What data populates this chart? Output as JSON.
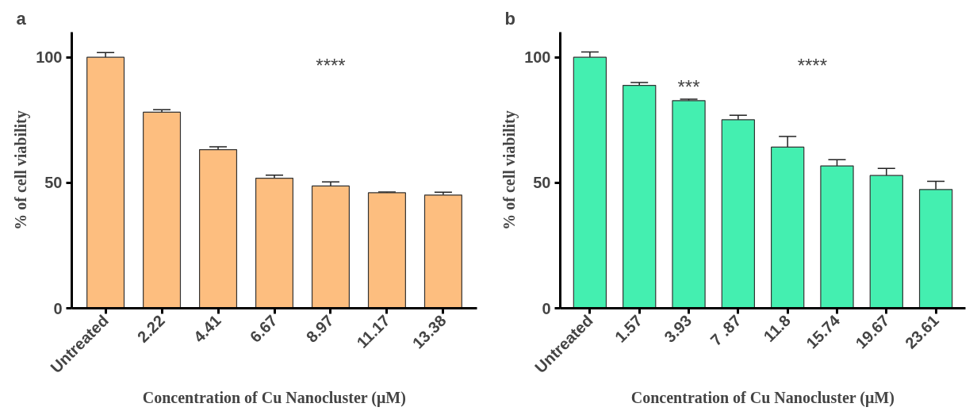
{
  "chart_data": [
    {
      "type": "bar",
      "title": "a",
      "xlabel": "Concentration of Cu Nanocluster (μM)",
      "ylabel": "% of cell viability",
      "categories": [
        "Untreated",
        "2.22",
        "4.41",
        "6.67",
        "8.97",
        "11.17",
        "13.38"
      ],
      "values": [
        100,
        78.1,
        63.2,
        51.8,
        48.7,
        46.0,
        45.1
      ],
      "errors": [
        1.9,
        1.0,
        1.1,
        1.2,
        1.6,
        0.3,
        1.1
      ],
      "color": "#fdbe7f",
      "ylim": [
        0,
        110
      ],
      "yticks": [
        0,
        50,
        100
      ],
      "grid": false,
      "annotations": [
        "****"
      ]
    },
    {
      "type": "bar",
      "title": "b",
      "xlabel": "Concentration of Cu Nanocluster (μM)",
      "ylabel": "% of cell viability",
      "categories": [
        "Untreated",
        "1.57",
        "3.93",
        "7 .87",
        "11.8",
        "15.74",
        "19.67",
        "23.61"
      ],
      "values": [
        100,
        88.8,
        82.7,
        75.1,
        64.2,
        56.7,
        52.9,
        47.3
      ],
      "errors": [
        2.1,
        1.1,
        0.6,
        1.8,
        4.2,
        2.5,
        2.8,
        3.3
      ],
      "color": "#44efb0",
      "ylim": [
        0,
        110
      ],
      "yticks": [
        0,
        50,
        100
      ],
      "grid": false,
      "annotations": [
        {
          "text": "***",
          "x": "3.93",
          "y": 84
        },
        "****"
      ]
    }
  ]
}
